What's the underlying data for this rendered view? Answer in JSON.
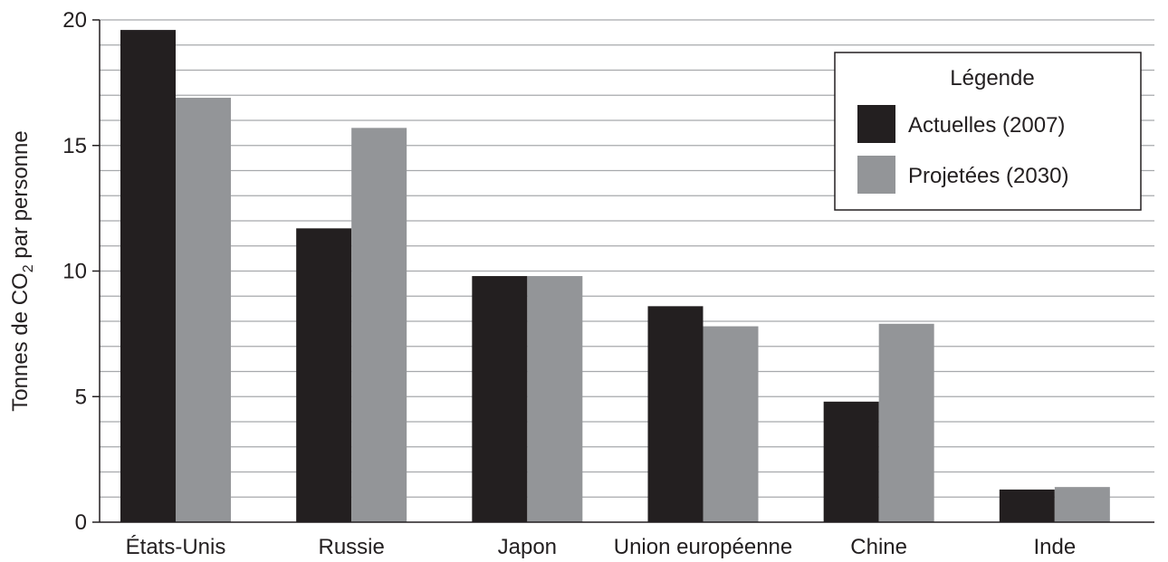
{
  "chart_data": {
    "type": "bar",
    "categories": [
      "États-Unis",
      "Russie",
      "Japon",
      "Union européenne",
      "Chine",
      "Inde"
    ],
    "series": [
      {
        "name": "Actuelles (2007)",
        "values": [
          19.6,
          11.7,
          9.8,
          8.6,
          4.8,
          1.3
        ],
        "color": "#231f20"
      },
      {
        "name": "Projetées (2030)",
        "values": [
          16.9,
          15.7,
          9.8,
          7.8,
          7.9,
          1.4
        ],
        "color": "#939598"
      }
    ],
    "title": "",
    "xlabel": "",
    "ylabel": {
      "prefix": "Tonnes de CO",
      "subscript": "2",
      "suffix": " par personne"
    },
    "ylim": [
      0,
      20
    ],
    "yticks": [
      "0",
      "5",
      "10",
      "15",
      "20"
    ],
    "gridline_step": 1,
    "grid": true,
    "legend": {
      "title": "Légende",
      "placement": "top-right"
    }
  }
}
